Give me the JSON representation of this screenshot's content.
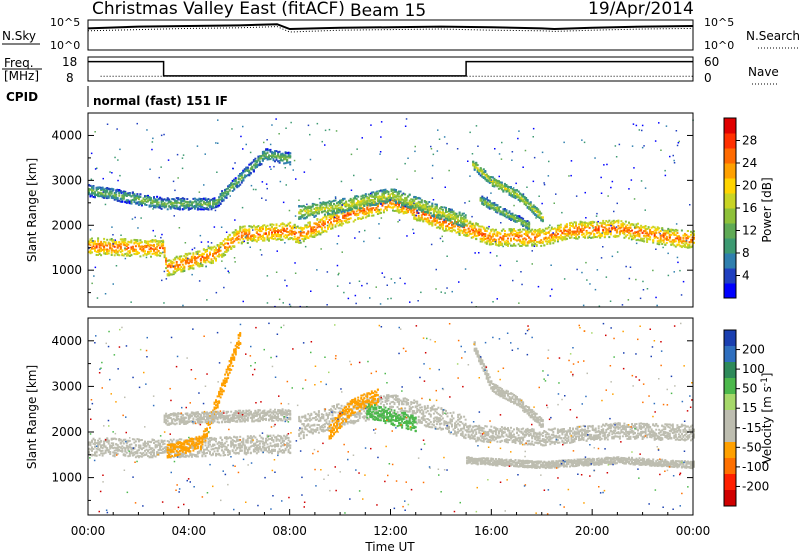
{
  "header": {
    "station": "Christmas Valley East (fitACF)",
    "beam": "Beam 15",
    "date": "19/Apr/2014"
  },
  "chart_data": [
    {
      "type": "line",
      "name": "noise-panel",
      "left_label": "N.Sky",
      "right_label": "N.Search",
      "left_ticks": [
        "10^5",
        "10^0"
      ],
      "right_ticks": [
        "10^5",
        "10^0"
      ],
      "x": [
        0,
        2,
        4,
        6,
        7.5,
        8,
        10,
        12,
        14,
        16,
        18,
        18.5,
        20,
        22,
        24
      ],
      "n_sky_log": [
        3.6,
        3.9,
        4.0,
        4.1,
        4.3,
        3.5,
        3.7,
        3.8,
        3.9,
        3.8,
        3.6,
        3.5,
        3.7,
        3.9,
        4.0
      ],
      "n_search_log": [
        3.2,
        3.4,
        3.6,
        3.7,
        3.9,
        3.0,
        3.3,
        3.4,
        3.5,
        3.3,
        3.2,
        3.1,
        3.3,
        3.5,
        3.6
      ],
      "ylim": [
        0,
        5
      ],
      "xlim": [
        0,
        24
      ]
    },
    {
      "type": "line",
      "name": "freq-nave-panel",
      "left_label_line1": "Freq.",
      "left_label_line2": "[MHz]",
      "right_label": "Nave",
      "left_ticks": [
        "18",
        "8"
      ],
      "right_ticks": [
        "60",
        "0"
      ],
      "freq_steps": [
        [
          0,
          3,
          16.8
        ],
        [
          3,
          15,
          10.3
        ],
        [
          15,
          24,
          16.8
        ]
      ],
      "nave_level": 13,
      "ylim": [
        8,
        18
      ],
      "xlim": [
        0,
        24
      ]
    },
    {
      "type": "table",
      "name": "cpid-panel",
      "label": "CPID",
      "value": "normal (fast) 151 IF"
    },
    {
      "type": "heatmap",
      "name": "power-panel",
      "ylabel": "Slant Range [km]",
      "xlim": [
        0,
        24
      ],
      "ylim": [
        180,
        4500
      ],
      "yticks": [
        1000,
        2000,
        3000,
        4000
      ],
      "colorbar": {
        "label": "Power [dB]",
        "ticks": [
          4,
          8,
          12,
          16,
          20,
          24,
          28
        ],
        "range": [
          0,
          32
        ],
        "colors": [
          "#0000ff",
          "#2040c0",
          "#2f7fae",
          "#3d9a72",
          "#5faa55",
          "#8ec13a",
          "#c8d424",
          "#ffd400",
          "#ffa000",
          "#ff6a00",
          "#ff3000",
          "#e00000"
        ]
      },
      "bands": [
        {
          "range_km": [
            [
              0,
              1550
            ],
            [
              3,
              1500
            ],
            [
              3.1,
              1080
            ],
            [
              5,
              1380
            ],
            [
              6,
              1800
            ],
            [
              8,
              1900
            ],
            [
              8.3,
              1800
            ],
            [
              10,
              2200
            ],
            [
              12,
              2550
            ],
            [
              14,
              2100
            ],
            [
              15,
              1950
            ],
            [
              16,
              1750
            ],
            [
              18,
              1750
            ],
            [
              19,
              1900
            ],
            [
              21,
              1950
            ],
            [
              23,
              1750
            ],
            [
              24,
              1700
            ]
          ],
          "width_km": 380,
          "power_db": 26
        },
        {
          "range_km": [
            [
              0,
              2800
            ],
            [
              3,
              2500
            ],
            [
              5,
              2500
            ],
            [
              7,
              3600
            ],
            [
              8,
              3500
            ]
          ],
          "width_km": 260,
          "power_db": 14
        },
        {
          "range_km": [
            [
              8.3,
              2300
            ],
            [
              10,
              2450
            ],
            [
              12,
              2700
            ],
            [
              14,
              2300
            ],
            [
              15,
              2100
            ]
          ],
          "width_km": 300,
          "power_db": 18
        },
        {
          "range_km": [
            [
              15.2,
              3400
            ],
            [
              16,
              3000
            ],
            [
              17,
              2700
            ],
            [
              18,
              2200
            ]
          ],
          "width_km": 200,
          "power_db": 18
        },
        {
          "range_km": [
            [
              15.5,
              2600
            ],
            [
              16.5,
              2300
            ],
            [
              17.5,
              2000
            ]
          ],
          "width_km": 180,
          "power_db": 16
        }
      ]
    },
    {
      "type": "heatmap",
      "name": "velocity-panel",
      "ylabel": "Slant Range [km]",
      "xlabel": "Time UT",
      "xlim": [
        0,
        24
      ],
      "ylim": [
        180,
        4500
      ],
      "yticks": [
        1000,
        2000,
        3000,
        4000
      ],
      "xticks": [
        "00:00",
        "04:00",
        "08:00",
        "12:00",
        "16:00",
        "20:00",
        "00:00"
      ],
      "xtick_hours": [
        0,
        4,
        8,
        12,
        16,
        20,
        24
      ],
      "colorbar": {
        "label": "Velocity [m s",
        "label_sup": "-1",
        "label_end": "]",
        "ticks": [
          "200",
          "100",
          "50",
          "15",
          "-15",
          "-50",
          "-100",
          "-200"
        ],
        "colors": [
          "#1a3fb0",
          "#2f6fbf",
          "#2e8a5a",
          "#4cb84c",
          "#a6d86a",
          "#bdbdb0",
          "#bdbdb0",
          "#ffa000",
          "#ff7000",
          "#ff2000",
          "#d00000"
        ]
      },
      "bands": [
        {
          "range_km": [
            [
              0,
              1700
            ],
            [
              3,
              1650
            ],
            [
              5,
              1700
            ],
            [
              7,
              1750
            ],
            [
              8,
              1750
            ]
          ],
          "width_km": 400,
          "velocity": "ground"
        },
        {
          "range_km": [
            [
              3.1,
              1600
            ],
            [
              4.5,
              1800
            ],
            [
              5.5,
              3300
            ],
            [
              6,
              4100
            ]
          ],
          "width_km": 300,
          "velocity": -50
        },
        {
          "range_km": [
            [
              3,
              2300
            ],
            [
              5,
              2350
            ],
            [
              8,
              2400
            ]
          ],
          "width_km": 250,
          "velocity": "ground"
        },
        {
          "range_km": [
            [
              8.3,
              2100
            ],
            [
              10,
              2400
            ],
            [
              12,
              2600
            ],
            [
              14,
              2300
            ],
            [
              15,
              2100
            ]
          ],
          "width_km": 500,
          "velocity": "ground"
        },
        {
          "range_km": [
            [
              9.5,
              2000
            ],
            [
              10.5,
              2600
            ],
            [
              11.5,
              2800
            ]
          ],
          "width_km": 350,
          "velocity": -50
        },
        {
          "range_km": [
            [
              11,
              2500
            ],
            [
              12,
              2350
            ],
            [
              13,
              2200
            ]
          ],
          "width_km": 350,
          "velocity": 50
        },
        {
          "range_km": [
            [
              15,
              2000
            ],
            [
              18,
              1900
            ],
            [
              21,
              2050
            ],
            [
              24,
              2000
            ]
          ],
          "width_km": 350,
          "velocity": "ground"
        },
        {
          "range_km": [
            [
              15.3,
              3900
            ],
            [
              16,
              3000
            ],
            [
              17,
              2700
            ],
            [
              18,
              2200
            ]
          ],
          "width_km": 200,
          "velocity": "ground"
        },
        {
          "range_km": [
            [
              15,
              1400
            ],
            [
              18,
              1300
            ],
            [
              21,
              1400
            ],
            [
              24,
              1300
            ]
          ],
          "width_km": 150,
          "velocity": "ground"
        }
      ]
    }
  ]
}
